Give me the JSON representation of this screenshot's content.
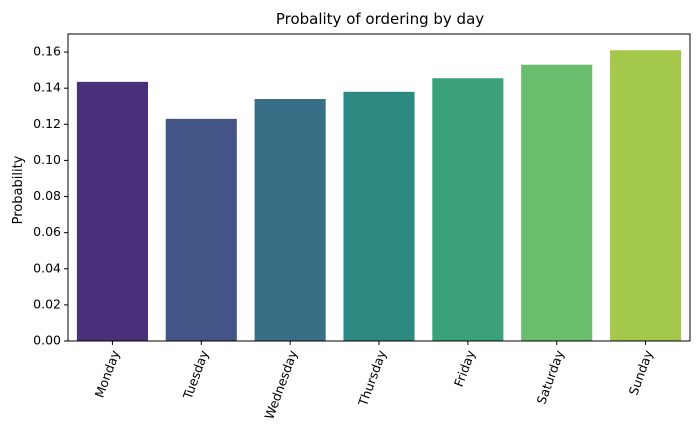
{
  "chart_data": {
    "type": "bar",
    "title": "Probality of ordering by day",
    "xlabel": "",
    "ylabel": "Probability",
    "categories": [
      "Monday",
      "Tuesday",
      "Wednesday",
      "Thursday",
      "Friday",
      "Saturday",
      "Sunday"
    ],
    "values": [
      0.1435,
      0.123,
      0.134,
      0.138,
      0.1455,
      0.153,
      0.161
    ],
    "colors": [
      "#48307a",
      "#425586",
      "#386f86",
      "#2c8a82",
      "#3aa17a",
      "#69bd6d",
      "#a4c84a"
    ],
    "ylim": [
      0,
      0.17
    ],
    "yticks": [
      0.0,
      0.02,
      0.04,
      0.06,
      0.08,
      0.1,
      0.12,
      0.14,
      0.16
    ],
    "ytick_labels": [
      "0.00",
      "0.02",
      "0.04",
      "0.06",
      "0.08",
      "0.10",
      "0.12",
      "0.14",
      "0.16"
    ],
    "grid": false,
    "legend": "none"
  }
}
